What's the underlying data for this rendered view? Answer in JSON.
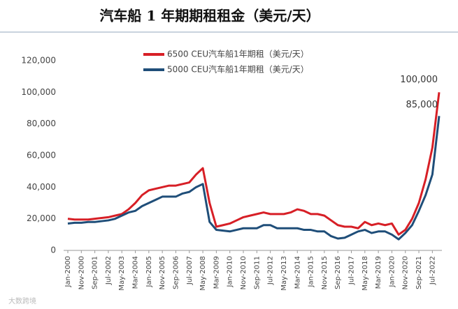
{
  "chart_data": {
    "type": "line",
    "title": "汽车船 1 年期期租租金（美元/天）",
    "watermark": "大数跨境",
    "categories": [
      "Jan-2000",
      null,
      "Nov-2000",
      null,
      "Sep-2001",
      null,
      "Jul-2002",
      null,
      "May-2003",
      null,
      "Mar-2004",
      null,
      "Jan-2005",
      null,
      "Nov-2005",
      null,
      "Sep-2006",
      null,
      "Jul-2007",
      null,
      "May-2008",
      null,
      "Mar-2009",
      null,
      "Jan-2010",
      null,
      "Nov-2010",
      null,
      "Sep-2011",
      null,
      "Jul-2012",
      null,
      "May-2013",
      null,
      "Mar-2014",
      null,
      "Jan-2015",
      null,
      "Nov-2015",
      null,
      "Sep-2016",
      null,
      "Jul-2017",
      null,
      "May-2018",
      null,
      "Mar-2019",
      null,
      "Jan-2020",
      null,
      "Nov-2020",
      null,
      "Sep-2021",
      null,
      "Jul-2022",
      null
    ],
    "series": [
      {
        "name": "6500 CEU汽车船1年期租（美元/天）",
        "color": "#d71f26",
        "values": [
          20000,
          19500,
          19500,
          19500,
          20000,
          20500,
          21000,
          22000,
          23000,
          26000,
          30000,
          35000,
          38000,
          39000,
          40000,
          41000,
          41000,
          42000,
          43000,
          48000,
          52000,
          30000,
          15000,
          16000,
          17000,
          19000,
          21000,
          22000,
          23000,
          24000,
          23000,
          23000,
          23000,
          24000,
          26000,
          25000,
          23000,
          23000,
          22000,
          19000,
          16000,
          15000,
          15000,
          14000,
          18000,
          16000,
          17000,
          16000,
          17000,
          10000,
          13000,
          20000,
          30000,
          45000,
          65000,
          100000
        ],
        "value_labels": [
          null,
          null,
          null,
          null,
          null,
          null,
          null,
          null,
          null,
          null,
          null,
          null,
          null,
          null,
          null,
          null,
          null,
          null,
          null,
          null,
          null,
          null,
          null,
          null,
          null,
          null,
          null,
          null,
          null,
          null,
          null,
          null,
          null,
          null,
          null,
          null,
          null,
          null,
          null,
          null,
          null,
          null,
          null,
          null,
          null,
          null,
          null,
          null,
          null,
          null,
          null,
          null,
          null,
          null,
          null,
          "100,000"
        ]
      },
      {
        "name": "5000 CEU汽车船1年期租（美元/天）",
        "color": "#1f4e79",
        "values": [
          17000,
          17500,
          17500,
          18000,
          18000,
          18500,
          19000,
          20000,
          22000,
          24000,
          25000,
          28000,
          30000,
          32000,
          34000,
          34000,
          34000,
          36000,
          37000,
          40000,
          42000,
          18000,
          13000,
          12500,
          12000,
          13000,
          14000,
          14000,
          14000,
          16000,
          16000,
          14000,
          14000,
          14000,
          14000,
          13000,
          13000,
          12000,
          12000,
          9000,
          7500,
          8000,
          10000,
          12000,
          13000,
          11000,
          12000,
          12000,
          10000,
          7000,
          11000,
          16000,
          25000,
          35000,
          48000,
          85000
        ],
        "value_labels": [
          null,
          null,
          null,
          null,
          null,
          null,
          null,
          null,
          null,
          null,
          null,
          null,
          null,
          null,
          null,
          null,
          null,
          null,
          null,
          null,
          null,
          null,
          null,
          null,
          null,
          null,
          null,
          null,
          null,
          null,
          null,
          null,
          null,
          null,
          null,
          null,
          null,
          null,
          null,
          null,
          null,
          null,
          null,
          null,
          null,
          null,
          null,
          null,
          null,
          null,
          null,
          null,
          null,
          null,
          null,
          "85,000"
        ]
      }
    ],
    "ylim": [
      0,
      120000
    ],
    "yticks": [
      0,
      {
        "value": 20000,
        "label": "20,000"
      },
      {
        "value": 40000,
        "label": "40,000"
      },
      {
        "value": 60000,
        "label": "60,000"
      },
      {
        "value": 80000,
        "label": "80,000"
      },
      {
        "value": 100000,
        "label": "100,000"
      },
      {
        "value": 120000,
        "label": "120,000"
      }
    ],
    "grid": false,
    "legend": "top"
  }
}
